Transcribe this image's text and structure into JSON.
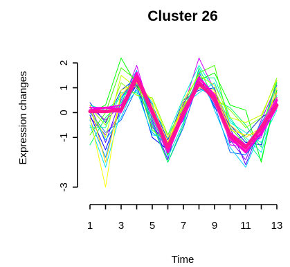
{
  "chart_data": {
    "type": "line",
    "title": "Cluster 26",
    "xlabel": "Time",
    "ylabel": "Expression changes",
    "x": [
      1,
      2,
      3,
      4,
      5,
      6,
      7,
      8,
      9,
      10,
      11,
      12,
      13
    ],
    "x_tick_labels": [
      "1",
      "3",
      "5",
      "7",
      "9",
      "11",
      "13"
    ],
    "x_tick_positions": [
      1,
      2,
      3,
      4,
      5,
      6,
      7,
      8,
      9,
      10,
      11,
      12,
      13
    ],
    "y_tick_labels": [
      "-3",
      "-1",
      "0",
      "1",
      "2"
    ],
    "y_tick_values": [
      -3,
      -1,
      0,
      1,
      2
    ],
    "xlim": [
      1,
      13
    ],
    "ylim": [
      -3.2,
      2.3
    ],
    "grid": false,
    "legend": "none",
    "series": [
      {
        "color": "#ff1493",
        "width": 5,
        "values": [
          0.05,
          0.05,
          0.1,
          1.4,
          0.05,
          -1.4,
          0.0,
          1.2,
          0.55,
          -0.9,
          -1.4,
          -0.6,
          0.3
        ]
      },
      {
        "color": "#ff00cc",
        "width": 3,
        "values": [
          0.1,
          0.2,
          0.15,
          1.6,
          0.1,
          -1.6,
          -0.1,
          1.4,
          0.7,
          -1.0,
          -1.6,
          -0.8,
          0.5
        ]
      },
      {
        "color": "#cc00ff",
        "width": 1,
        "values": [
          0.2,
          -0.3,
          0.3,
          1.9,
          -0.2,
          -1.7,
          0.2,
          2.2,
          0.9,
          -1.3,
          -1.4,
          -1.0,
          0.8
        ]
      },
      {
        "color": "#8800ff",
        "width": 1,
        "values": [
          -0.2,
          -0.9,
          0.0,
          1.2,
          -0.6,
          -1.2,
          -0.3,
          1.6,
          0.4,
          -1.1,
          -1.9,
          -0.3,
          1.1
        ]
      },
      {
        "color": "#5500ff",
        "width": 1,
        "values": [
          0.3,
          -1.2,
          0.6,
          1.5,
          -0.3,
          -1.9,
          0.4,
          1.1,
          0.8,
          -0.6,
          -2.1,
          -0.5,
          0.4
        ]
      },
      {
        "color": "#0000ff",
        "width": 1,
        "values": [
          -0.1,
          -1.5,
          0.2,
          1.1,
          -1.0,
          -1.5,
          -0.2,
          1.5,
          0.2,
          -0.5,
          -1.2,
          -1.3,
          0.9
        ]
      },
      {
        "color": "#0033cc",
        "width": 1,
        "values": [
          0.4,
          -0.4,
          0.9,
          1.4,
          0.3,
          -1.1,
          0.5,
          0.9,
          1.0,
          -1.2,
          -0.9,
          -0.2,
          0.2
        ]
      },
      {
        "color": "#0066ff",
        "width": 1,
        "values": [
          0.0,
          -0.8,
          -0.3,
          1.0,
          -0.4,
          -2.0,
          -0.6,
          1.3,
          0.3,
          -1.6,
          -1.7,
          -0.9,
          1.3
        ]
      },
      {
        "color": "#0099ff",
        "width": 1,
        "values": [
          -0.3,
          -1.8,
          0.5,
          1.7,
          -0.8,
          -1.3,
          0.1,
          1.0,
          0.6,
          -0.8,
          -1.5,
          -0.4,
          0.6
        ]
      },
      {
        "color": "#00ccff",
        "width": 1,
        "values": [
          0.1,
          -1.1,
          -0.2,
          1.3,
          0.4,
          -1.8,
          -0.4,
          1.7,
          0.1,
          -1.4,
          -2.2,
          -0.7,
          1.0
        ]
      },
      {
        "color": "#00e5ee",
        "width": 1,
        "values": [
          -0.5,
          -2.2,
          0.1,
          0.9,
          -0.9,
          -1.0,
          0.3,
          0.8,
          1.2,
          -0.3,
          -1.0,
          -1.6,
          0.5
        ]
      },
      {
        "color": "#00ffcc",
        "width": 1,
        "values": [
          0.3,
          0.1,
          0.6,
          1.2,
          0.2,
          -0.9,
          0.6,
          1.9,
          0.9,
          -0.4,
          -0.8,
          -1.2,
          0.1
        ]
      },
      {
        "color": "#00ff99",
        "width": 1,
        "values": [
          -0.6,
          -0.6,
          0.8,
          0.8,
          -0.2,
          -1.6,
          0.2,
          1.4,
          1.4,
          -0.2,
          -1.1,
          -1.9,
          0.7
        ]
      },
      {
        "color": "#00ff66",
        "width": 1,
        "values": [
          -1.3,
          -0.2,
          0.4,
          1.6,
          -0.5,
          -2.0,
          -0.5,
          1.8,
          0.5,
          0.2,
          -0.5,
          -1.4,
          1.2
        ]
      },
      {
        "color": "#00ff00",
        "width": 1,
        "values": [
          0.0,
          0.3,
          2.2,
          1.1,
          0.1,
          -1.7,
          -0.1,
          1.3,
          1.6,
          0.3,
          0.1,
          -2.0,
          0.9
        ]
      },
      {
        "color": "#44ff00",
        "width": 1,
        "values": [
          -0.9,
          0.0,
          1.8,
          1.3,
          -0.7,
          -1.2,
          0.3,
          1.6,
          1.9,
          -0.6,
          -1.3,
          -0.7,
          1.3
        ]
      },
      {
        "color": "#88ff00",
        "width": 1,
        "values": [
          0.2,
          -0.5,
          1.2,
          0.7,
          0.6,
          -0.9,
          0.2,
          1.2,
          0.6,
          0.1,
          -0.6,
          -0.2,
          1.4
        ]
      },
      {
        "color": "#ccff00",
        "width": 1,
        "values": [
          0.1,
          -1.0,
          1.5,
          1.0,
          0.3,
          -1.4,
          0.5,
          1.5,
          1.1,
          -0.2,
          -0.4,
          -0.1,
          1.3
        ]
      },
      {
        "color": "#ffff00",
        "width": 1,
        "values": [
          -0.2,
          -3.0,
          0.9,
          1.2,
          0.5,
          -1.0,
          0.1,
          1.1,
          0.8,
          -0.7,
          -0.9,
          -0.8,
          1.0
        ]
      },
      {
        "color": "#ffcc00",
        "width": 1,
        "values": [
          0.3,
          -2.0,
          0.7,
          1.4,
          0.2,
          -1.2,
          0.3,
          1.0,
          0.9,
          -0.5,
          -1.0,
          -0.6,
          0.8
        ]
      },
      {
        "color": "#ff33cc",
        "width": 2,
        "values": [
          0.0,
          0.1,
          0.0,
          1.5,
          -0.1,
          -1.5,
          0.1,
          1.3,
          0.4,
          -1.1,
          -1.5,
          -0.5,
          0.6
        ]
      },
      {
        "color": "#ee00ee",
        "width": 2,
        "values": [
          0.2,
          0.2,
          0.3,
          1.3,
          0.0,
          -1.3,
          -0.2,
          1.1,
          0.6,
          -0.8,
          -1.3,
          -0.9,
          0.2
        ]
      }
    ]
  }
}
